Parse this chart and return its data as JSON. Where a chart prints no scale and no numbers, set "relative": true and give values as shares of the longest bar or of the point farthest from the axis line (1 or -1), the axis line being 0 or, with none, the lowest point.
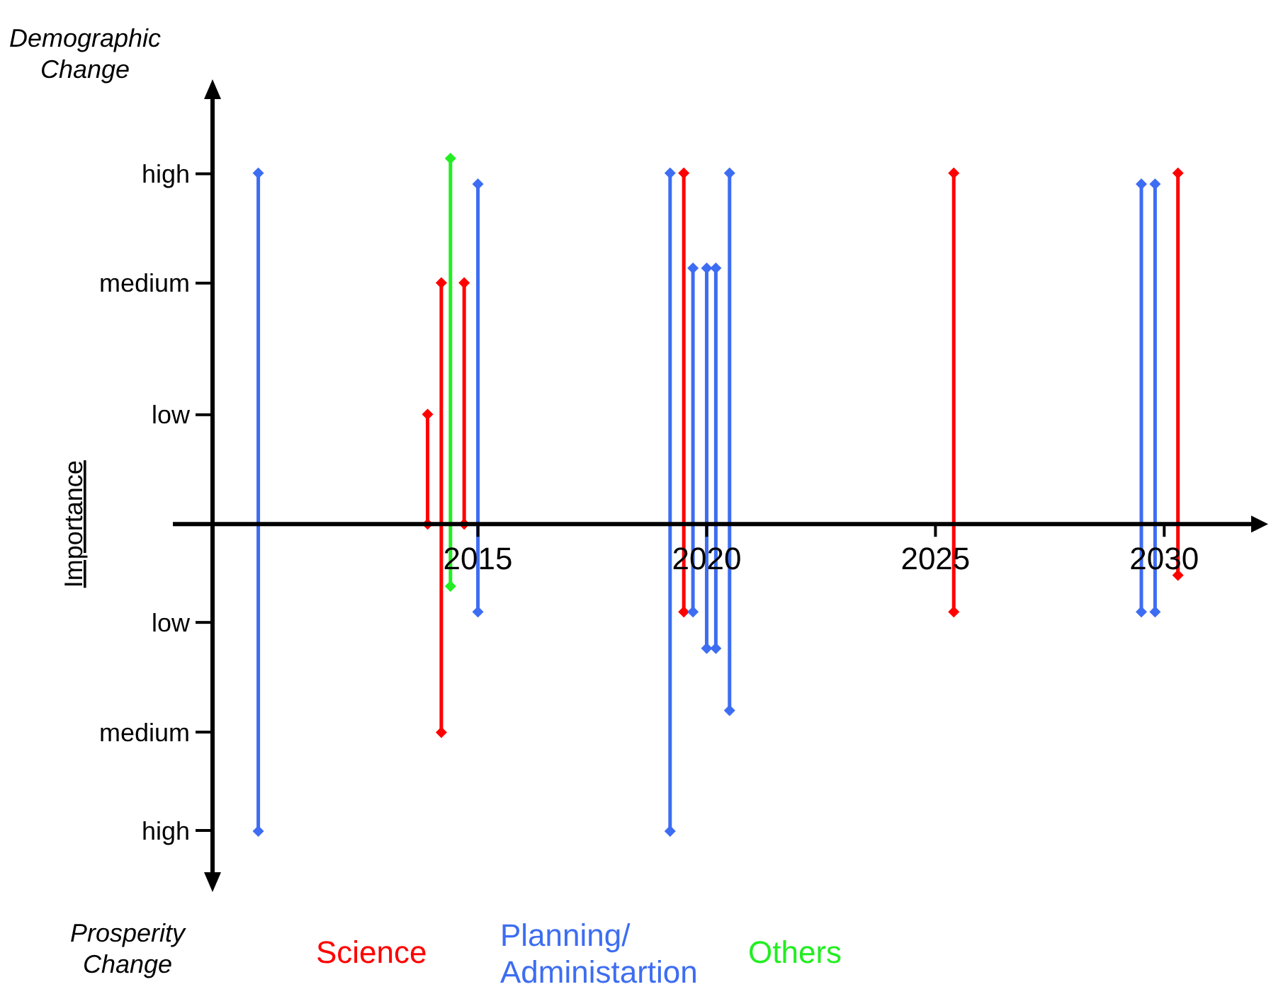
{
  "chart_data": {
    "type": "line",
    "ylabel": "Importance",
    "relative": true,
    "annotations": [
      "Demographic Change",
      "Prosperity Change",
      "high",
      "medium",
      "low",
      "low",
      "medium",
      "high"
    ],
    "xlim": [
      2009.2,
      2031.9
    ],
    "xticks": [
      2015,
      2020,
      2025,
      2030
    ],
    "grid": false,
    "marker": "diamond",
    "line_style": "solid",
    "series": [
      {
        "name": "Science",
        "color": "#ff0000",
        "x": [
          2013.9,
          2013.9
        ],
        "values": [
          0,
          0.3
        ]
      },
      {
        "name": "Planning/ Administartion",
        "color": "#3d6df2",
        "x": [
          2010.2,
          2010.2
        ],
        "values": [
          -0.84,
          0.96
        ]
      },
      {
        "name": "Others",
        "color": "#22ee22",
        "x": [
          2014.4,
          2014.4
        ],
        "values": [
          -0.17,
          1
        ]
      },
      {
        "color": "#ff0000",
        "x": [
          2014.2,
          2014.2
        ],
        "values": [
          -0.57,
          0.66
        ]
      },
      {
        "color": "#ff0000",
        "x": [
          2014.7,
          2014.7
        ],
        "values": [
          0,
          0.66
        ]
      },
      {
        "color": "#ff0000",
        "x": [
          2019.5,
          2019.5
        ],
        "values": [
          -0.24,
          0.96
        ]
      },
      {
        "color": "#ff0000",
        "x": [
          2025.4,
          2025.4
        ],
        "values": [
          -0.24,
          0.96
        ]
      },
      {
        "color": "#ff0000",
        "x": [
          2030.3,
          2030.3
        ],
        "values": [
          -0.14,
          0.96
        ]
      },
      {
        "color": "#3d6df2",
        "x": [
          2015.0,
          2015.0
        ],
        "values": [
          -0.24,
          0.93
        ]
      },
      {
        "color": "#3d6df2",
        "x": [
          2019.2,
          2019.2
        ],
        "values": [
          -0.84,
          0.96
        ]
      },
      {
        "color": "#3d6df2",
        "x": [
          2019.7,
          2019.7
        ],
        "values": [
          -0.24,
          0.7
        ]
      },
      {
        "color": "#3d6df2",
        "x": [
          2020.0,
          2020.0
        ],
        "values": [
          -0.34,
          0.7
        ]
      },
      {
        "color": "#3d6df2",
        "x": [
          2020.2,
          2020.2
        ],
        "values": [
          -0.34,
          0.7
        ]
      },
      {
        "color": "#3d6df2",
        "x": [
          2020.5,
          2020.5
        ],
        "values": [
          -0.51,
          0.96
        ]
      },
      {
        "color": "#3d6df2",
        "x": [
          2029.5,
          2029.5
        ],
        "values": [
          -0.24,
          0.93
        ]
      },
      {
        "color": "#3d6df2",
        "x": [
          2029.8,
          2029.8
        ],
        "values": [
          -0.24,
          0.93
        ]
      }
    ]
  }
}
